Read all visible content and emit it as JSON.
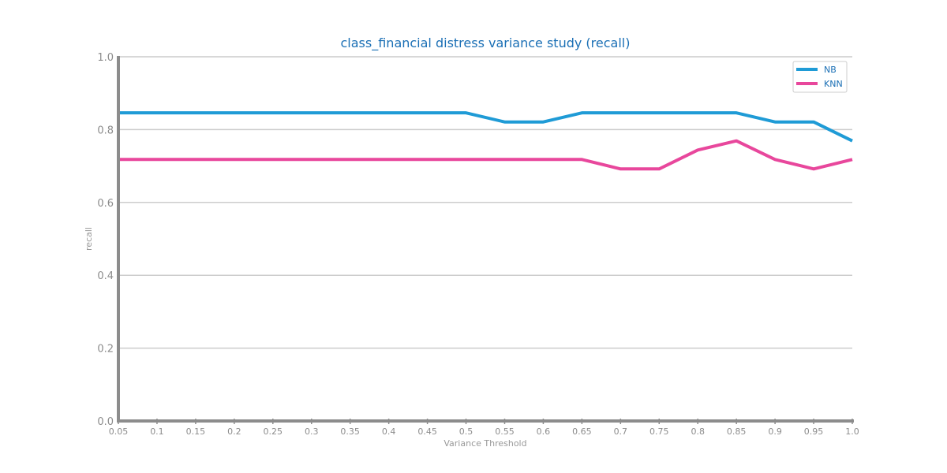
{
  "chart_data": {
    "type": "line",
    "title": "class_financial distress variance study (recall)",
    "xlabel": "Variance Threshold",
    "ylabel": "recall",
    "x": [
      0.05,
      0.1,
      0.15,
      0.2,
      0.25,
      0.3,
      0.35,
      0.4,
      0.45,
      0.5,
      0.55,
      0.6,
      0.65,
      0.7,
      0.75,
      0.8,
      0.85,
      0.9,
      0.95,
      1.0
    ],
    "xtick_labels": [
      "0.05",
      "0.1",
      "0.15",
      "0.2",
      "0.25",
      "0.3",
      "0.35",
      "0.4",
      "0.45",
      "0.5",
      "0.55",
      "0.6",
      "0.65",
      "0.7",
      "0.75",
      "0.8",
      "0.85",
      "0.9",
      "0.95",
      "1.0"
    ],
    "yticks": [
      0.0,
      0.2,
      0.4,
      0.6,
      0.8,
      1.0
    ],
    "ytick_labels": [
      "0.0",
      "0.2",
      "0.4",
      "0.6",
      "0.8",
      "1.0"
    ],
    "xlim": [
      0.05,
      1.0
    ],
    "ylim": [
      0.0,
      1.0
    ],
    "grid": "horizontal",
    "legend_position": "top-right",
    "series": [
      {
        "name": "NB",
        "color": "#1f9bd6",
        "values": [
          0.846,
          0.846,
          0.846,
          0.846,
          0.846,
          0.846,
          0.846,
          0.846,
          0.846,
          0.846,
          0.821,
          0.821,
          0.846,
          0.846,
          0.846,
          0.846,
          0.846,
          0.821,
          0.821,
          0.769
        ]
      },
      {
        "name": "KNN",
        "color": "#e8479c",
        "values": [
          0.718,
          0.718,
          0.718,
          0.718,
          0.718,
          0.718,
          0.718,
          0.718,
          0.718,
          0.718,
          0.718,
          0.718,
          0.718,
          0.692,
          0.692,
          0.744,
          0.769,
          0.718,
          0.692,
          0.718
        ]
      }
    ]
  }
}
